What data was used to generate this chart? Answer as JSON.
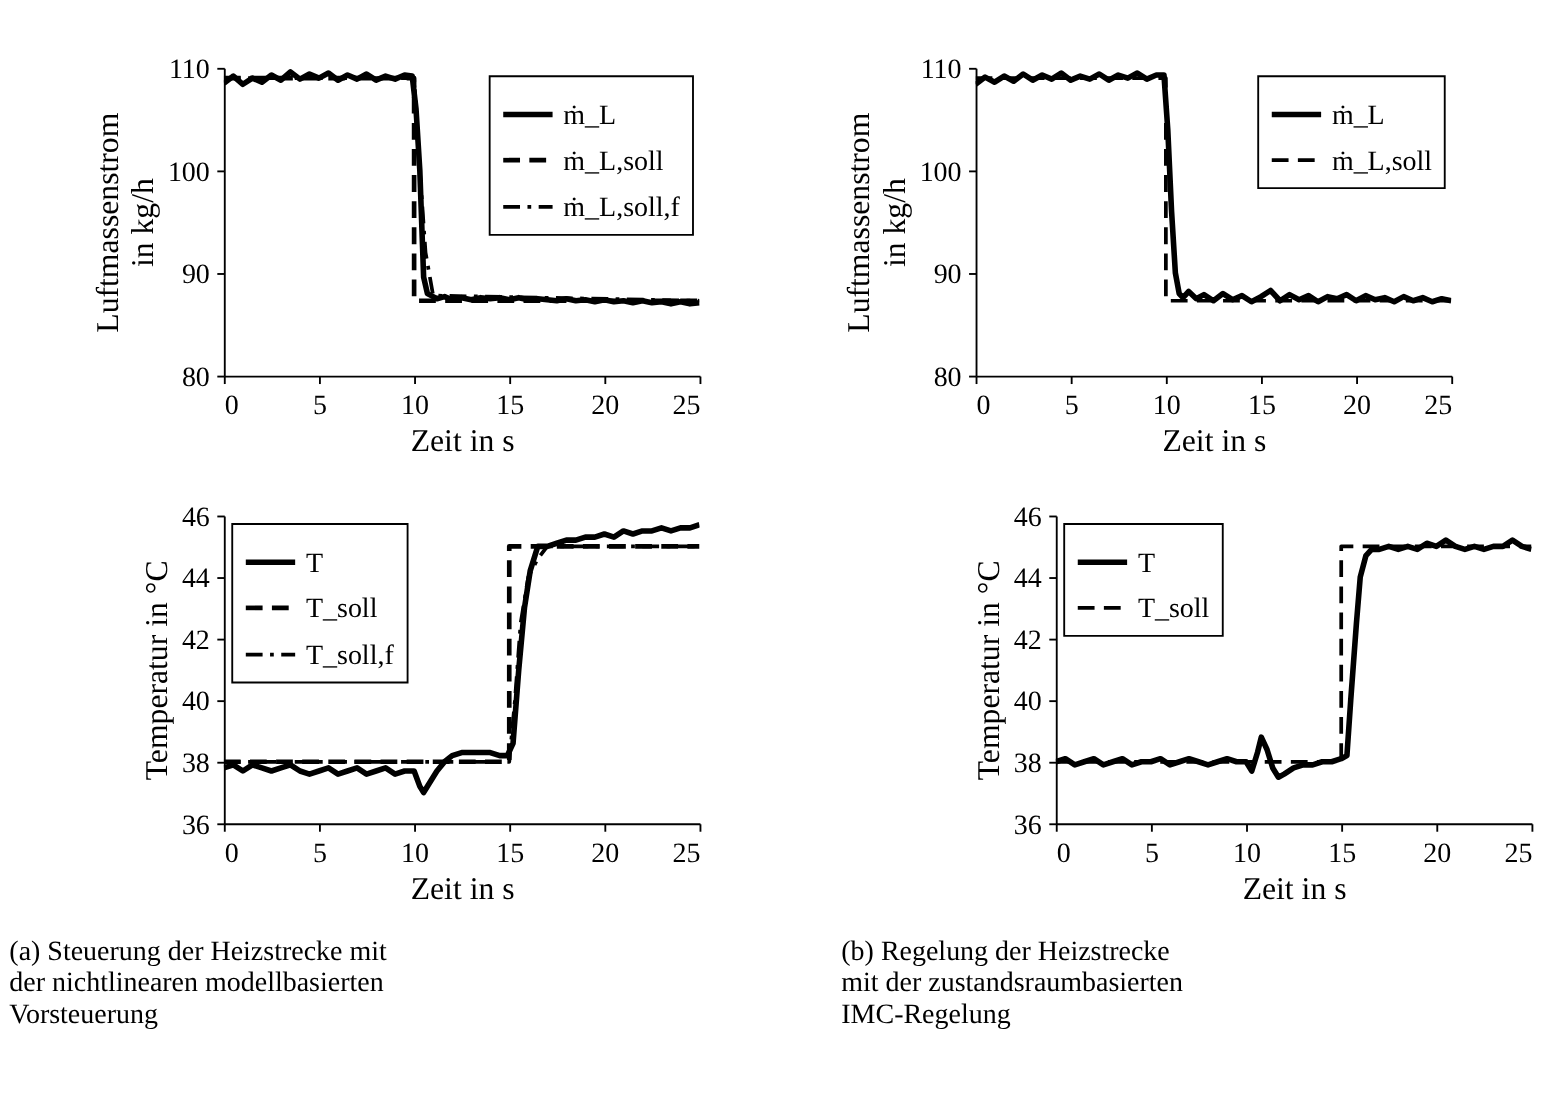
{
  "chart_data": [
    {
      "type": "line",
      "ylabel": "Luftmassenstrom\nin kg/h",
      "xlabel": "Zeit in s",
      "xlim": [
        0,
        25
      ],
      "xticks": [
        0,
        5,
        10,
        15,
        20,
        25
      ],
      "ylim": [
        80,
        110
      ],
      "yticks": [
        80,
        90,
        100,
        110
      ],
      "legend": "top right",
      "grid": false,
      "marker": "none",
      "series": [
        {
          "name": "ṁ_L",
          "color": "#000000",
          "line_style": "solid",
          "x": [
            0,
            0.5,
            1,
            1.5,
            2,
            2.5,
            3,
            3.5,
            4,
            4.5,
            5,
            5.5,
            6,
            6.5,
            7,
            7.5,
            8,
            8.5,
            9,
            9.5,
            9.9,
            10.1,
            10.3,
            10.5,
            10.7,
            10.9,
            11.2,
            11.6,
            12,
            12.5,
            13,
            13.5,
            14,
            14.5,
            15,
            15.5,
            16,
            16.5,
            17,
            17.5,
            18,
            18.5,
            19,
            19.5,
            20,
            20.5,
            21,
            21.5,
            22,
            22.5,
            23,
            23.5,
            24,
            24.5,
            25
          ],
          "values": [
            108.5,
            109.2,
            108.4,
            109.0,
            108.6,
            109.3,
            108.8,
            109.6,
            108.9,
            109.4,
            109.0,
            109.5,
            108.8,
            109.3,
            108.9,
            109.4,
            108.8,
            109.2,
            108.9,
            109.3,
            109.2,
            106,
            100,
            89.6,
            88,
            87.8,
            87.5,
            87.7,
            87.4,
            87.6,
            87.4,
            87.6,
            87.5,
            87.6,
            87.4,
            87.6,
            87.4,
            87.5,
            87.4,
            87.3,
            87.5,
            87.3,
            87.4,
            87.2,
            87.4,
            87.2,
            87.3,
            87.1,
            87.3,
            87.1,
            87.2,
            87.0,
            87.2,
            87.0,
            87.1
          ]
        },
        {
          "name": "ṁ_L,soll",
          "color": "#000000",
          "line_style": "dashed",
          "x": [
            0,
            10,
            10,
            25
          ],
          "values": [
            109,
            109,
            87.3,
            87.3
          ]
        },
        {
          "name": "ṁ_L,soll,f",
          "color": "#000000",
          "line_style": "dashdot",
          "x": [
            0,
            10,
            10.3,
            10.6,
            11,
            25
          ],
          "values": [
            109,
            109,
            100,
            92,
            87.8,
            87.3
          ]
        }
      ]
    },
    {
      "type": "line",
      "ylabel": "Luftmassenstrom\nin kg/h",
      "xlabel": "Zeit in s",
      "xlim": [
        0,
        25
      ],
      "xticks": [
        0,
        5,
        10,
        15,
        20,
        25
      ],
      "ylim": [
        80,
        110
      ],
      "yticks": [
        80,
        90,
        100,
        110
      ],
      "legend": "top right",
      "grid": false,
      "marker": "none",
      "series": [
        {
          "name": "ṁ_L",
          "color": "#000000",
          "line_style": "solid",
          "x": [
            0,
            0.5,
            1,
            1.5,
            2,
            2.5,
            3,
            3.5,
            4,
            4.5,
            5,
            5.5,
            6,
            6.5,
            7,
            7.5,
            8,
            8.5,
            9,
            9.5,
            9.9,
            10.1,
            10.3,
            10.5,
            10.7,
            10.9,
            11.2,
            11.6,
            12,
            12.5,
            13,
            13.5,
            14,
            14.5,
            15,
            15.5,
            16,
            16.5,
            17,
            17.5,
            18,
            18.5,
            19,
            19.5,
            20,
            20.5,
            21,
            21.5,
            22,
            22.5,
            23,
            23.5,
            24,
            24.5,
            25
          ],
          "values": [
            108.4,
            109.1,
            108.6,
            109.2,
            108.7,
            109.4,
            108.8,
            109.3,
            108.9,
            109.5,
            108.8,
            109.2,
            108.9,
            109.4,
            108.8,
            109.3,
            109.0,
            109.5,
            108.9,
            109.3,
            109.3,
            104,
            96,
            90,
            88,
            87.6,
            88.2,
            87.5,
            87.9,
            87.3,
            88.0,
            87.4,
            87.8,
            87.2,
            87.7,
            88.3,
            87.3,
            87.9,
            87.4,
            87.8,
            87.2,
            87.7,
            87.5,
            87.9,
            87.3,
            87.8,
            87.4,
            87.6,
            87.2,
            87.7,
            87.3,
            87.6,
            87.2,
            87.5,
            87.3
          ]
        },
        {
          "name": "ṁ_L,soll",
          "color": "#000000",
          "line_style": "dashed",
          "x": [
            0,
            10,
            10,
            25
          ],
          "values": [
            109,
            109,
            87.3,
            87.3
          ]
        }
      ]
    },
    {
      "type": "line",
      "ylabel": "Temperatur in °C",
      "xlabel": "Zeit in s",
      "xlim": [
        0,
        25
      ],
      "xticks": [
        0,
        5,
        10,
        15,
        20,
        25
      ],
      "ylim": [
        36,
        46
      ],
      "yticks": [
        36,
        38,
        40,
        42,
        44,
        46
      ],
      "legend": "top left",
      "grid": false,
      "marker": "none",
      "annotations": [
        "(a) Steuerung der Heizstrecke mit\n     der nichtlinearen modellbasierten\n     Vorsteuerung"
      ],
      "series": [
        {
          "name": "T",
          "color": "#000000",
          "line_style": "solid",
          "x": [
            0,
            0.5,
            1,
            1.5,
            2,
            2.5,
            3,
            3.5,
            4,
            4.5,
            5,
            5.5,
            6,
            6.5,
            7,
            7.5,
            8,
            8.5,
            9,
            9.5,
            10,
            10.3,
            10.5,
            10.8,
            11.2,
            11.6,
            12,
            12.5,
            13,
            13.5,
            14,
            14.5,
            14.9,
            15.2,
            15.5,
            15.8,
            16.1,
            16.5,
            17,
            17.5,
            18,
            18.5,
            19,
            19.5,
            20,
            20.5,
            21,
            21.5,
            22,
            22.5,
            23,
            23.5,
            24,
            24.5,
            25
          ],
          "values": [
            37.8,
            37.9,
            37.7,
            37.9,
            37.8,
            37.7,
            37.8,
            37.9,
            37.7,
            37.6,
            37.7,
            37.8,
            37.6,
            37.7,
            37.8,
            37.6,
            37.7,
            37.8,
            37.6,
            37.7,
            37.7,
            37.2,
            37.0,
            37.3,
            37.7,
            38.0,
            38.2,
            38.3,
            38.3,
            38.3,
            38.3,
            38.2,
            38.2,
            38.6,
            41,
            43,
            44.2,
            45.0,
            45.0,
            45.1,
            45.2,
            45.2,
            45.3,
            45.3,
            45.4,
            45.3,
            45.5,
            45.4,
            45.5,
            45.5,
            45.6,
            45.5,
            45.6,
            45.6,
            45.7
          ]
        },
        {
          "name": "T_soll",
          "color": "#000000",
          "line_style": "dashed",
          "x": [
            0,
            15,
            15,
            25
          ],
          "values": [
            38,
            38,
            45,
            45
          ]
        },
        {
          "name": "T_soll,f",
          "color": "#000000",
          "line_style": "dashdot",
          "x": [
            0,
            15,
            15.3,
            15.6,
            16,
            16.5,
            17,
            25
          ],
          "values": [
            38,
            38,
            40,
            42.5,
            44,
            44.6,
            45,
            45
          ]
        }
      ]
    },
    {
      "type": "line",
      "ylabel": "Temperatur in °C",
      "xlabel": "Zeit in s",
      "xlim": [
        0,
        25
      ],
      "xticks": [
        0,
        5,
        10,
        15,
        20,
        25
      ],
      "ylim": [
        36,
        46
      ],
      "yticks": [
        36,
        38,
        40,
        42,
        44,
        46
      ],
      "legend": "top left",
      "grid": false,
      "marker": "none",
      "annotations": [
        "(b) Regelung der Heizstrecke\n     mit der zustandsraumbasierten\n     IMC-Regelung"
      ],
      "series": [
        {
          "name": "T",
          "color": "#000000",
          "line_style": "solid",
          "x": [
            0,
            0.5,
            1,
            1.5,
            2,
            2.5,
            3,
            3.5,
            4,
            4.5,
            5,
            5.5,
            6,
            6.5,
            7,
            7.5,
            8,
            8.5,
            9,
            9.5,
            10,
            10.3,
            10.6,
            10.8,
            11.1,
            11.4,
            11.7,
            12,
            12.5,
            13,
            13.5,
            14,
            14.5,
            15,
            15.3,
            15.5,
            15.8,
            16,
            16.3,
            16.6,
            17,
            17.5,
            18,
            18.5,
            19,
            19.5,
            20,
            20.5,
            21,
            21.5,
            22,
            22.5,
            23,
            23.5,
            24,
            24.5,
            25
          ],
          "values": [
            38.0,
            38.1,
            37.9,
            38.0,
            38.1,
            37.9,
            38.0,
            38.1,
            37.9,
            38.0,
            38.0,
            38.1,
            37.9,
            38.0,
            38.1,
            38.0,
            37.9,
            38.0,
            38.1,
            38.0,
            38.0,
            37.7,
            38.3,
            38.8,
            38.4,
            37.8,
            37.5,
            37.6,
            37.8,
            37.9,
            37.9,
            38.0,
            38.0,
            38.1,
            38.2,
            40,
            42.5,
            44,
            44.7,
            44.9,
            44.9,
            45.0,
            44.9,
            45.0,
            44.9,
            45.1,
            45.0,
            45.2,
            45.0,
            44.9,
            45.0,
            44.9,
            45.0,
            45.0,
            45.2,
            45.0,
            44.9
          ]
        },
        {
          "name": "T_soll",
          "color": "#000000",
          "line_style": "dashed",
          "x": [
            0,
            15,
            15,
            25
          ],
          "values": [
            38,
            38,
            45,
            45
          ]
        }
      ]
    }
  ]
}
